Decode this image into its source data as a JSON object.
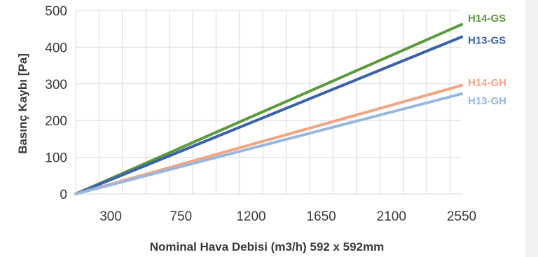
{
  "chart_data": {
    "type": "line",
    "xlabel": "Nominal Hava Debisi (m3/h) 592 x 592mm",
    "ylabel": "Basınç Kaybı [Pa]",
    "x_tick_labels": [
      "300",
      "750",
      "1200",
      "1650",
      "2100",
      "2550"
    ],
    "y_ticks": [
      0,
      100,
      200,
      300,
      400,
      500
    ],
    "xlim": [
      75,
      2550
    ],
    "ylim": [
      0,
      500
    ],
    "grid": true,
    "legend": "direct-labels-right",
    "series": [
      {
        "name": "H14-GS",
        "color": "#5b9a3e",
        "x": [
          75,
          2550
        ],
        "y": [
          0,
          462
        ]
      },
      {
        "name": "H13-GS",
        "color": "#3a62a8",
        "x": [
          75,
          2550
        ],
        "y": [
          0,
          428
        ]
      },
      {
        "name": "H14-GH",
        "color": "#f2a585",
        "x": [
          75,
          2550
        ],
        "y": [
          0,
          296
        ]
      },
      {
        "name": "H13-GH",
        "color": "#98b8e0",
        "x": [
          75,
          2550
        ],
        "y": [
          0,
          273
        ]
      }
    ]
  }
}
